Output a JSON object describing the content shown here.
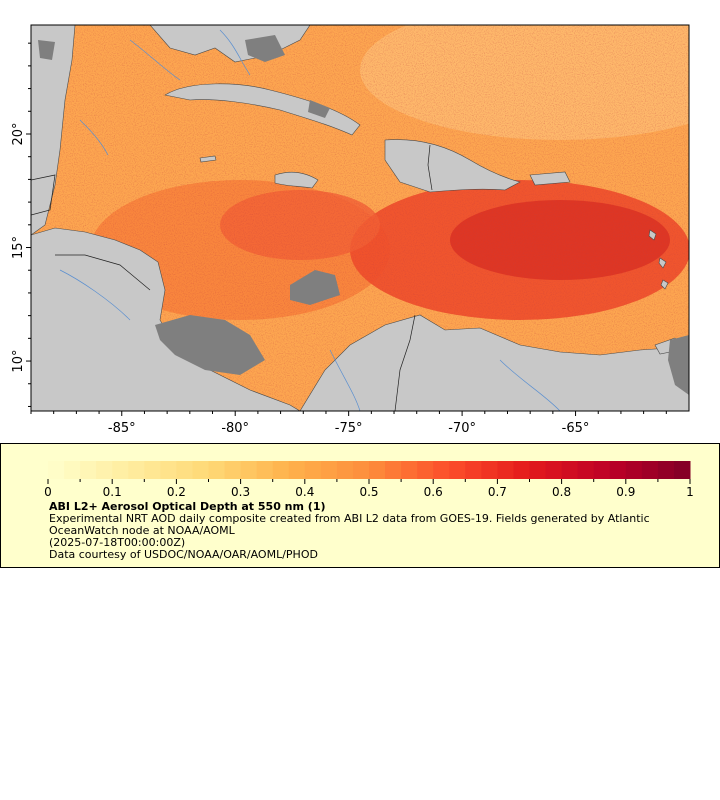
{
  "map": {
    "title": "ABI L2+ Aerosol Optical Depth at 550 nm (1)",
    "lon_ticks": [
      "-85°",
      "-80°",
      "-75°",
      "-70°",
      "-65°"
    ],
    "lat_ticks": [
      "20°",
      "15°",
      "10°"
    ],
    "lon_values": [
      -85,
      -80,
      -75,
      -70,
      -65
    ],
    "lat_values": [
      20,
      15,
      10
    ],
    "lon_range": [
      -89,
      -60
    ],
    "lat_range": [
      7.8,
      24.8
    ],
    "land_color": "#c8c8c8",
    "nodata_color": "#7f7f7f",
    "coast_color": "#4a4a4a",
    "river_color": "#5a8fd0"
  },
  "colorbar": {
    "ticks": [
      "0",
      "0.1",
      "0.2",
      "0.3",
      "0.4",
      "0.5",
      "0.6",
      "0.7",
      "0.8",
      "0.9",
      "1"
    ],
    "min": 0,
    "max": 1,
    "colors": [
      "#ffffcc",
      "#ffeda0",
      "#fed976",
      "#feb24c",
      "#fd8d3c",
      "#fc4e2a",
      "#e31a1c",
      "#bd0026",
      "#800026"
    ]
  },
  "legend": {
    "title": "ABI L2+ Aerosol Optical Depth at 550 nm (1)",
    "description": "Experimental NRT AOD daily composite created from ABI L2 data from GOES-19. Fields generated by Atlantic OceanWatch node at NOAA/AOML",
    "time": "(2025-07-18T00:00:00Z)",
    "credit": "Data courtesy of USDOC/NOAA/OAR/AOML/PHOD"
  }
}
